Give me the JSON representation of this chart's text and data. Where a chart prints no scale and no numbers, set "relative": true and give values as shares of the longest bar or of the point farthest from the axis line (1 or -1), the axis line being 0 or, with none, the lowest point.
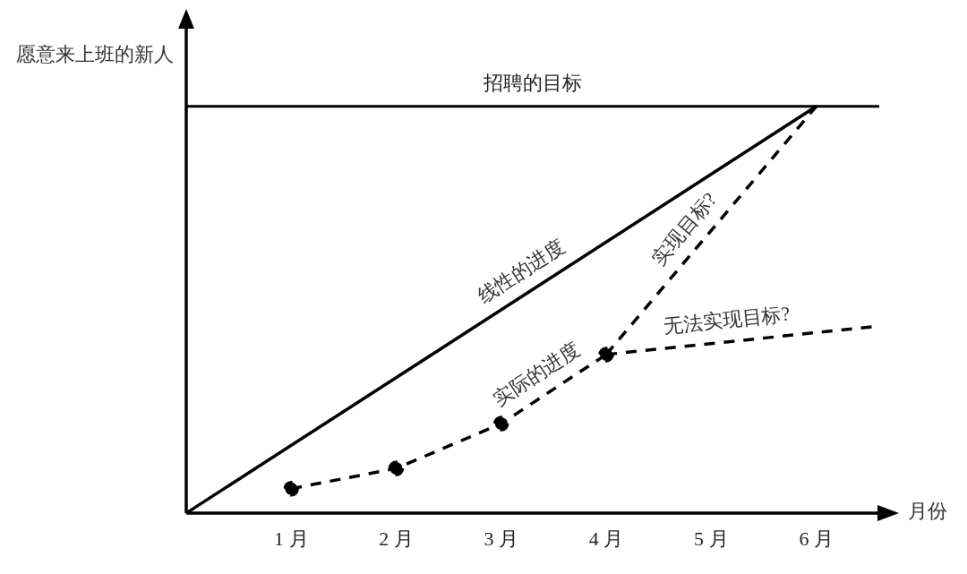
{
  "chart_data": {
    "type": "line",
    "relative": true,
    "xlabel": "月份",
    "ylabel": "愿意来上班的新人",
    "xlim": [
      0,
      6.6
    ],
    "xticks": [
      {
        "value": 1,
        "label": "1 月"
      },
      {
        "value": 2,
        "label": "2 月"
      },
      {
        "value": 3,
        "label": "3 月"
      },
      {
        "value": 4,
        "label": "4 月"
      },
      {
        "value": 5,
        "label": "5 月"
      },
      {
        "value": 6,
        "label": "6 月"
      }
    ],
    "series": [
      {
        "name": "线性的进度",
        "color": "#000000",
        "x": [
          0,
          6
        ],
        "values": [
          0,
          1
        ],
        "line_style": "solid",
        "marker": "none"
      },
      {
        "name": "实际的进度",
        "color": "#000000",
        "x": [
          1,
          2,
          3,
          4
        ],
        "values": [
          0.06,
          0.11,
          0.22,
          0.39
        ],
        "line_style": "dashed",
        "marker": "circle"
      },
      {
        "name": "实现目标?",
        "color": "#000000",
        "x": [
          4,
          6
        ],
        "values": [
          0.39,
          1
        ],
        "line_style": "dashed",
        "marker": "none"
      },
      {
        "name": "无法实现目标?",
        "color": "#000000",
        "x": [
          4,
          6.6
        ],
        "values": [
          0.39,
          0.46
        ],
        "line_style": "dashed",
        "marker": "none"
      }
    ],
    "ref_lines": [
      {
        "axis": "y",
        "value": 1,
        "label": "招聘的目标",
        "color": "#000000"
      }
    ],
    "tick_labels": "x"
  }
}
